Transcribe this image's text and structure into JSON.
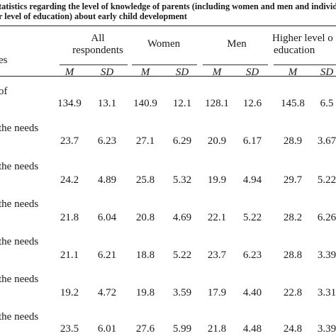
{
  "caption": {
    "line1": "tatistics regarding the level of knowledge of parents (including women and men and individu",
    "line2": "r level of education) about early child development"
  },
  "header": {
    "row_label_fragment": "es",
    "groups": [
      {
        "line1": "All",
        "line2": "respondents"
      },
      {
        "line1": "Women",
        "line2": ""
      },
      {
        "line1": "Men",
        "line2": ""
      },
      {
        "line1": "Higher level o",
        "line2": "education"
      }
    ],
    "stats": [
      "M",
      "SD",
      "M",
      "SD",
      "M",
      "SD",
      "M",
      "SD"
    ]
  },
  "rows": [
    {
      "label": "of",
      "values": [
        "134.9",
        "13.1",
        "140.9",
        "12.1",
        "128.1",
        "12.6",
        "145.8",
        "6.5"
      ]
    },
    {
      "label": "the needs",
      "values": [
        "23.7",
        "6.23",
        "27.1",
        "6.29",
        "20.9",
        "6.17",
        "28.9",
        "3.67"
      ]
    },
    {
      "label": "the needs",
      "values": [
        "24.2",
        "4.89",
        "25.8",
        "5.32",
        "19.9",
        "4.94",
        "29.7",
        "5.22"
      ]
    },
    {
      "label": "the needs",
      "values": [
        "21.8",
        "6.04",
        "20.8",
        "4.69",
        "22.1",
        "5.22",
        "28.2",
        "6.26"
      ]
    },
    {
      "label": "the needs",
      "values": [
        "21.1",
        "6.21",
        "18.8",
        "5.22",
        "23.7",
        "6.23",
        "28.8",
        "3.39"
      ]
    },
    {
      "label": "the needs",
      "values": [
        "19.2",
        "4.72",
        "19.8",
        "3.59",
        "17.9",
        "4.40",
        "22.8",
        "3.31"
      ]
    },
    {
      "label": "the needs",
      "values": [
        "23.5",
        "6.01",
        "27.6",
        "5.99",
        "21.8",
        "4.48",
        "24.8",
        "3.39"
      ]
    }
  ]
}
